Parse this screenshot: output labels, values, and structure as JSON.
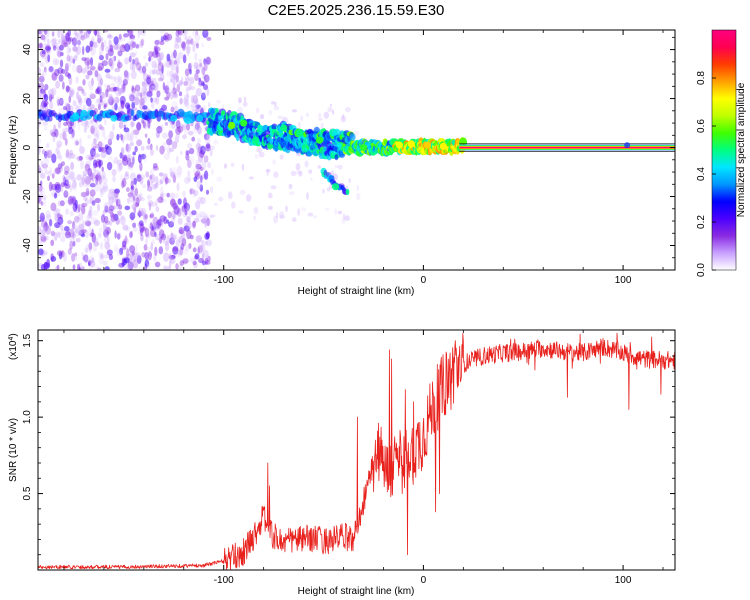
{
  "page_title": "C2E5.2025.236.15.59.E30",
  "chart_data": [
    {
      "type": "heatmap",
      "title": "C2E5.2025.236.15.59.E30",
      "xlabel": "Height of straight line (km)",
      "ylabel": "Frequency (Hz)",
      "xlim": [
        -193,
        126
      ],
      "ylim": [
        -50,
        48
      ],
      "xticks": [
        -100,
        0,
        100
      ],
      "yticks": [
        -40,
        -20,
        0,
        20,
        40
      ],
      "xtick_labels": [
        "-100",
        "0",
        "100"
      ],
      "ytick_labels": [
        "-40",
        "-20",
        "0",
        "20",
        "40"
      ],
      "colorbar": {
        "label": "Normalized spectral amplitude",
        "range": [
          0,
          1
        ],
        "ticks": [
          0,
          0.2,
          0.4,
          0.6,
          0.8
        ],
        "tick_labels": [
          "0.0",
          "0.2",
          "0.4",
          "0.6",
          "0.8"
        ],
        "colors": [
          "#ffffff",
          "#c8a0ff",
          "#8a2be2",
          "#4b00ff",
          "#0000ff",
          "#0096ff",
          "#00e6ff",
          "#00ff80",
          "#40ff00",
          "#c0ff00",
          "#ffff00",
          "#ffa000",
          "#ff3c00",
          "#ff0050",
          "#ff0080"
        ]
      },
      "features": [
        {
          "name": "noise-field",
          "x_range": [
            -193,
            -107
          ],
          "y_range": [
            -50,
            48
          ],
          "amplitude": 0.15
        },
        {
          "name": "carrier-line",
          "x_range": [
            -193,
            -107
          ],
          "y": 13,
          "amplitude": 0.35
        },
        {
          "name": "main-track",
          "points": [
            [
              -107,
              11
            ],
            [
              -95,
              9
            ],
            [
              -80,
              5
            ],
            [
              -60,
              2
            ],
            [
              -40,
              0
            ],
            [
              -20,
              0
            ],
            [
              0,
              0.5
            ],
            [
              20,
              0.5
            ]
          ],
          "amplitude": 0.5
        },
        {
          "name": "upper-branch",
          "points": [
            [
              -72,
              9
            ],
            [
              -60,
              6
            ],
            [
              -45,
              5
            ],
            [
              -35,
              4
            ]
          ],
          "amplitude": 0.4
        },
        {
          "name": "lower-branch",
          "points": [
            [
              -50,
              -10
            ],
            [
              -42,
              -16
            ],
            [
              -38,
              -18
            ]
          ],
          "amplitude": 0.35
        },
        {
          "name": "steady-line",
          "x_range": [
            18,
            126
          ],
          "y": 0,
          "amplitude": 1.0
        }
      ]
    },
    {
      "type": "line",
      "xlabel": "Height of straight line (km)",
      "ylabel": "SNR (10 * v/v)",
      "y_multiplier": "(x10^4)",
      "y_multiplier_base": "(x10",
      "y_multiplier_exp": "4",
      "y_multiplier_close": ")",
      "xlim": [
        -193,
        126
      ],
      "ylim": [
        0,
        1.57
      ],
      "xticks": [
        -100,
        0,
        100
      ],
      "yticks": [
        0.5,
        1.0,
        1.5
      ],
      "xtick_labels": [
        "-100",
        "0",
        "100"
      ],
      "ytick_labels": [
        "0.5",
        "1.0",
        "1.5"
      ],
      "color": "#e8211d",
      "series": [
        {
          "name": "SNR",
          "x": [
            -193,
            -150,
            -110,
            -100,
            -95,
            -90,
            -85,
            -80,
            -75,
            -70,
            -65,
            -60,
            -55,
            -50,
            -45,
            -40,
            -35,
            -30,
            -25,
            -22,
            -20,
            -18,
            -15,
            -10,
            -5,
            0,
            5,
            10,
            15,
            20,
            30,
            40,
            50,
            60,
            70,
            80,
            90,
            100,
            110,
            126
          ],
          "y": [
            0.02,
            0.02,
            0.03,
            0.06,
            0.08,
            0.12,
            0.22,
            0.35,
            0.22,
            0.18,
            0.2,
            0.2,
            0.21,
            0.19,
            0.2,
            0.22,
            0.2,
            0.45,
            0.7,
            0.8,
            0.75,
            0.62,
            0.68,
            0.72,
            0.78,
            0.88,
            1.08,
            1.2,
            1.3,
            1.35,
            1.4,
            1.42,
            1.43,
            1.45,
            1.43,
            1.42,
            1.46,
            1.42,
            1.38,
            1.37
          ],
          "peaks": [
            [
              -78,
              0.7
            ],
            [
              -77,
              0.55
            ],
            [
              -33,
              1.0
            ],
            [
              -17,
              1.44
            ],
            [
              -16,
              1.38
            ],
            [
              -9,
              1.18
            ],
            [
              -5,
              1.1
            ],
            [
              6,
              0.38
            ],
            [
              16,
              1.5
            ],
            [
              97,
              1.55
            ],
            [
              103,
              1.52
            ]
          ],
          "dips": [
            [
              -8,
              0.1
            ],
            [
              6,
              0.38
            ],
            [
              8,
              0.5
            ],
            [
              72,
              1.13
            ],
            [
              103,
              1.05
            ],
            [
              119,
              1.15
            ]
          ]
        }
      ]
    }
  ]
}
